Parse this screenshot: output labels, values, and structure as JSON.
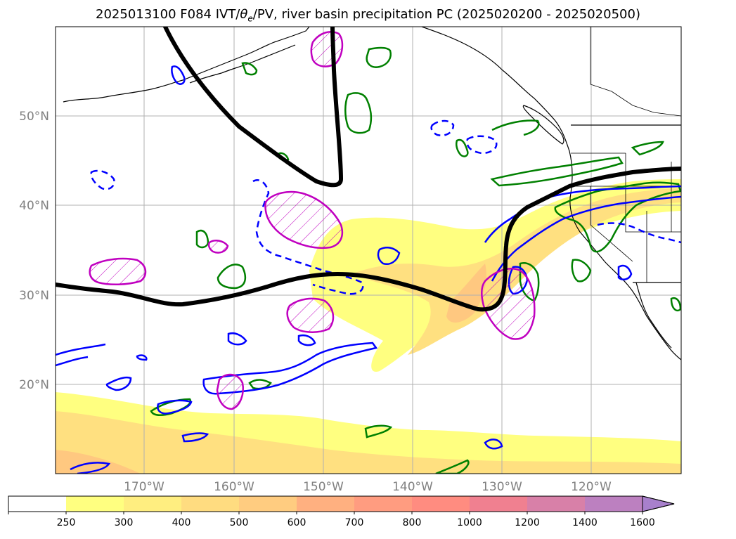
{
  "title": "2025013100 F084 IVT/θe/PV, river basin precipitation PC (2025020200 - 2025020500)",
  "title_parts": {
    "pre": "2025013100 F084 IVT/",
    "theta": "θ",
    "sub": "e",
    "post": "/PV, river basin precipitation PC (2025020200 - 2025020500)"
  },
  "lat_labels": [
    "50°N",
    "40°N",
    "30°N",
    "20°N"
  ],
  "lon_labels": [
    "170°W",
    "160°W",
    "150°W",
    "140°W",
    "130°W",
    "120°W"
  ],
  "colorbar": {
    "ticks": [
      "250",
      "300",
      "400",
      "500",
      "600",
      "700",
      "800",
      "1000",
      "1200",
      "1400",
      "1600"
    ],
    "colors": [
      "#ffffff",
      "#ffff80",
      "#ffee80",
      "#ffdc80",
      "#ffcc80",
      "#ffb080",
      "#ff9c80",
      "#ff8c80",
      "#f08090",
      "#d880a8",
      "#bc80c0",
      "#a880cc"
    ],
    "extend": "max"
  },
  "layers": {
    "ivt_fill_light": "#ffff80",
    "ivt_fill_mid": "#ffe080",
    "ivt_fill_strong": "#ffc880",
    "pv_contour": "#000000",
    "theta_e_contour": "#0000ff",
    "precip_pc_contour": "#008000",
    "pv_hatch": "#c000c0",
    "coastline": "#000000"
  }
}
